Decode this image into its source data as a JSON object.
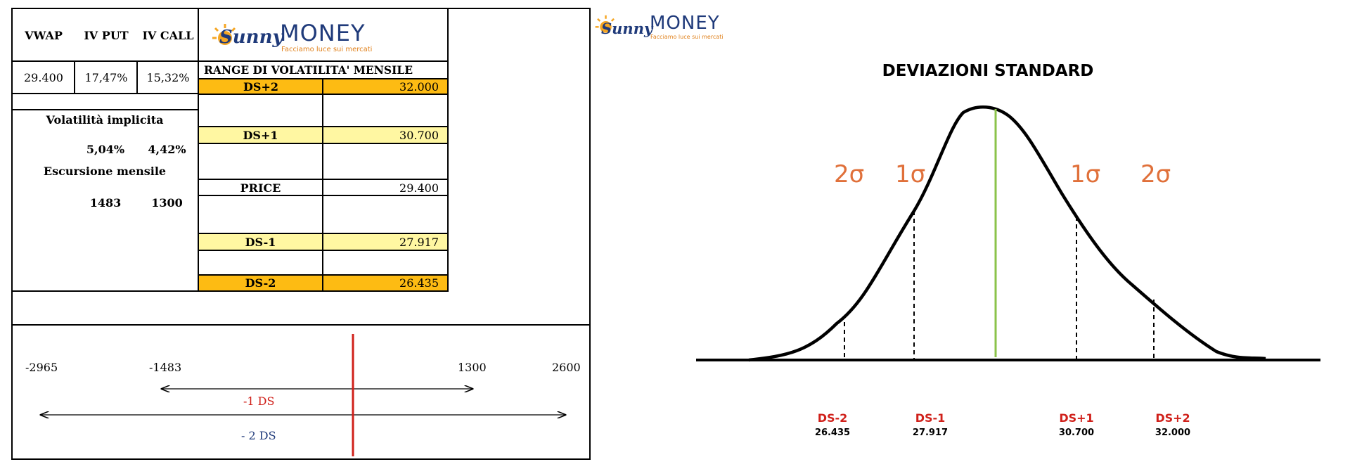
{
  "logo": {
    "brand_a": "Sunny",
    "brand_b": "MONEY",
    "tagline": "Facciamo luce sui mercati",
    "sun_color": "#f5a623"
  },
  "table": {
    "headers": [
      "VWAP",
      "IV PUT",
      "IV CALL"
    ],
    "values": [
      "29.400",
      "17,47%",
      "15,32%"
    ],
    "vol_label": "Volatilità implicita",
    "vol_values": [
      "5,04%",
      "4,42%"
    ],
    "esc_label": "Escursione mensile",
    "esc_values": [
      "1483",
      "1300"
    ]
  },
  "range": {
    "title": "RANGE DI VOLATILITA' MENSILE",
    "rows": [
      {
        "label": "DS+2",
        "value": "32.000"
      },
      {
        "label": "DS+1",
        "value": "30.700"
      },
      {
        "label": "PRICE",
        "value": "29.400"
      },
      {
        "label": "DS-1",
        "value": "27.917"
      },
      {
        "label": "DS-2",
        "value": "26.435"
      }
    ]
  },
  "scale": {
    "labels": [
      "-2965",
      "-1483",
      "1300",
      "2600"
    ],
    "ds1": "-1 DS",
    "ds2": "- 2 DS",
    "marker_color": "#d0201a"
  },
  "curve": {
    "title": "DEVIAZIONI STANDARD",
    "sigma_labels": [
      "2σ",
      "1σ",
      "1σ",
      "2σ"
    ],
    "sigma_color": "#e0703a",
    "center_color": "#8bc34a",
    "ds_labels": [
      "DS-2",
      "DS-1",
      "DS+1",
      "DS+2"
    ],
    "ds_values": [
      "26.435",
      "27.917",
      "30.700",
      "32.000"
    ],
    "ds_label_color": "#d0201a"
  },
  "colors": {
    "orange": "#fdbb13",
    "yellow": "#fff7a2"
  }
}
